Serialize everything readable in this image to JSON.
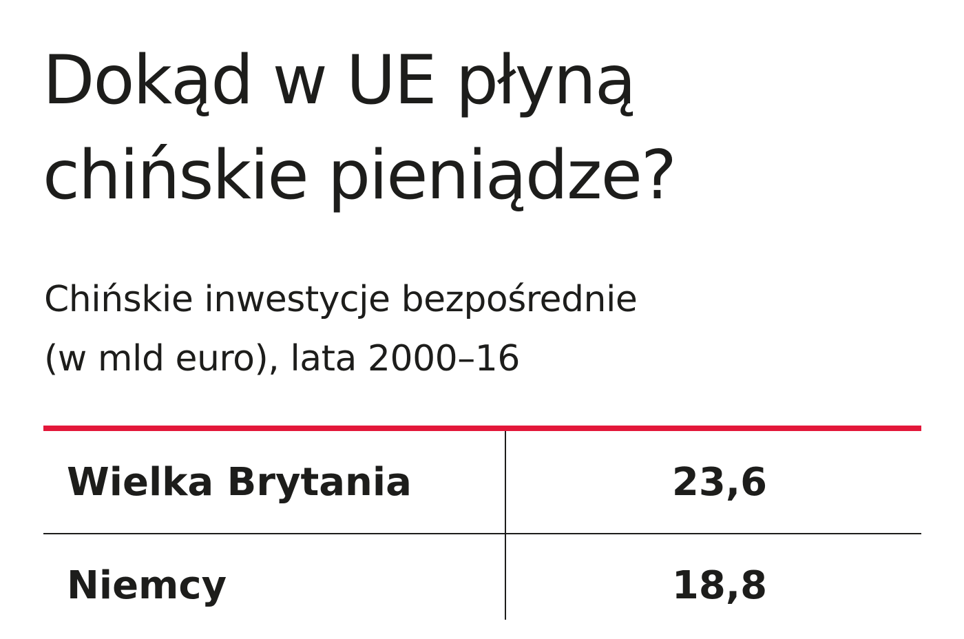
{
  "chart_data": {
    "type": "table",
    "title": [
      "Dokąd w UE płyną",
      "chińskie pieniądze?"
    ],
    "subtitle": [
      "Chińskie inwestycje bezpośrednie",
      "(w mld euro), lata 2000–16"
    ],
    "rows": [
      {
        "country": "Wielka Brytania",
        "value": "23,6"
      },
      {
        "country": "Niemcy",
        "value": "18,8"
      }
    ]
  },
  "colors": {
    "accent": "#e3173a",
    "text": "#1d1d1b"
  }
}
